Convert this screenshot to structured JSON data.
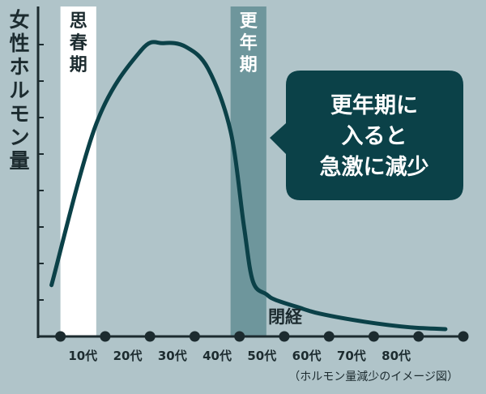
{
  "chart_data": {
    "type": "line",
    "title": "",
    "ylabel": "女性ホルモン量",
    "xlabel": "",
    "x_tick_labels": [
      "10代",
      "20代",
      "30代",
      "40代",
      "50代",
      "60代",
      "70代",
      "80代"
    ],
    "series": [
      {
        "name": "",
        "x": [
          0.0,
          1.0,
          2.0,
          2.5,
          3.0,
          3.5,
          4.0,
          4.3,
          4.5,
          4.8,
          5.0,
          5.5,
          6.0,
          7.0,
          8.0,
          8.8
        ],
        "y": [
          1.4,
          5.8,
          7.8,
          8.0,
          7.9,
          7.3,
          5.6,
          3.0,
          1.5,
          1.15,
          1.0,
          0.8,
          0.62,
          0.4,
          0.25,
          0.2
        ]
      }
    ],
    "ylim": [
      0,
      9
    ],
    "xlim": [
      -0.3,
      9.2
    ],
    "marker_positions": [
      0.2,
      1.2,
      2.2,
      3.2,
      4.2,
      5.2,
      6.2,
      7.2,
      8.2,
      9.2
    ],
    "bands": [
      {
        "label": "思春期",
        "x_start": 0.2,
        "x_end": 1.0,
        "color": "#ffffff"
      },
      {
        "label": "更年期",
        "x_start": 4.0,
        "x_end": 4.8,
        "color": "#6e969c"
      }
    ],
    "annotations": {
      "menopause_label": "閉経",
      "callout_lines": [
        "更年期に",
        "入ると",
        "急激に減少"
      ],
      "note": "（ホルモン量減少のイメージ図）"
    }
  },
  "colors": {
    "background": "#b0c4c9",
    "line": "#0b4148",
    "axis": "#1c2b2f",
    "callout": "#0b4148"
  }
}
